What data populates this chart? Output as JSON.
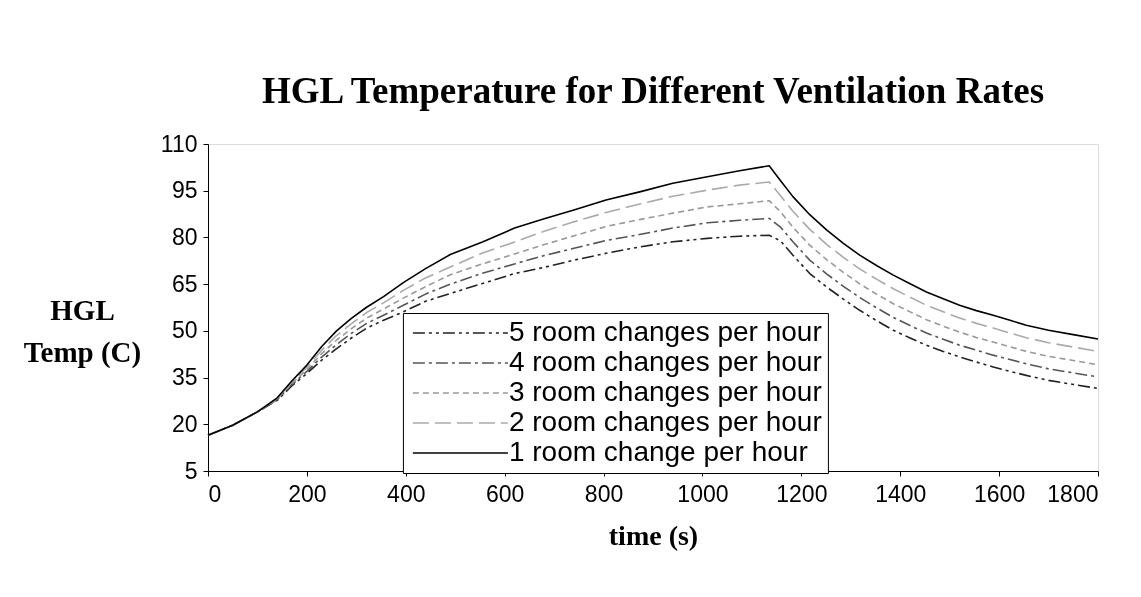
{
  "chart_data": {
    "type": "line",
    "title": "HGL Temperature for Different Ventilation Rates",
    "xlabel": "time (s)",
    "ylabel": "HGL Temp (C)",
    "x": [
      0,
      50,
      100,
      140,
      170,
      200,
      230,
      260,
      290,
      320,
      355,
      395,
      440,
      490,
      555,
      620,
      680,
      740,
      805,
      875,
      940,
      1010,
      1075,
      1135,
      1158,
      1183,
      1217,
      1251,
      1285,
      1318,
      1352,
      1386,
      1420,
      1453,
      1487,
      1520,
      1554,
      1588,
      1622,
      1655,
      1700,
      1750,
      1800
    ],
    "series": [
      {
        "name": "5 room changes per hour",
        "color": "#222222",
        "line_style": "dashdotdot",
        "values": [
          16.5,
          19.7,
          24,
          27.7,
          32.4,
          36.3,
          40.6,
          44.3,
          47.7,
          50.8,
          53.4,
          56.1,
          59.5,
          62,
          65.2,
          68.4,
          70.4,
          72.7,
          74.9,
          77,
          78.6,
          79.7,
          80.4,
          80.7,
          78.9,
          74.3,
          68.4,
          64.1,
          60.2,
          56.6,
          53.3,
          50.2,
          47.7,
          45.4,
          43.4,
          41.6,
          40,
          38.4,
          37,
          35.7,
          34.1,
          32.8,
          31.5
        ]
      },
      {
        "name": "4 room changes per hour",
        "color": "#555555",
        "line_style": "dashdot",
        "values": [
          16.5,
          19.7,
          24,
          27.9,
          32.8,
          37,
          41.6,
          45.6,
          49.2,
          52.3,
          55,
          58.2,
          61.8,
          65,
          68.5,
          71.5,
          74.2,
          76.5,
          79,
          81,
          83,
          84.7,
          85.5,
          86.1,
          83.3,
          78.6,
          72.7,
          68.3,
          64.3,
          60.7,
          57.4,
          54.3,
          51.7,
          49.3,
          47.3,
          45.4,
          43.8,
          42.2,
          40.8,
          39.4,
          37.8,
          36.5,
          35.2
        ]
      },
      {
        "name": "3 room changes per hour",
        "color": "#999999",
        "line_style": "dashed",
        "values": [
          16.5,
          19.7,
          24,
          28.1,
          33.2,
          37.6,
          42.7,
          47,
          50.7,
          54,
          57,
          60.5,
          64.2,
          68,
          71.5,
          74.7,
          77.7,
          80.5,
          83.5,
          85.8,
          87.8,
          89.8,
          90.8,
          91.8,
          88.2,
          83.3,
          77.5,
          72.9,
          68.8,
          65.1,
          61.8,
          58.7,
          56.1,
          53.6,
          51.5,
          49.6,
          47.9,
          46.4,
          44.9,
          43.4,
          41.8,
          40.5,
          39.1
        ]
      },
      {
        "name": "2 room changes per hour",
        "color": "#aaaaaa",
        "line_style": "longdash",
        "values": [
          16.5,
          19.7,
          24,
          28.3,
          33.6,
          38.3,
          43.8,
          48.5,
          52.3,
          55.8,
          59,
          63,
          67,
          70.5,
          75,
          78.5,
          82,
          85,
          88,
          90.8,
          93.2,
          95.2,
          96.8,
          97.8,
          93.4,
          88.4,
          82.6,
          77.8,
          73.6,
          69.9,
          66.6,
          63.5,
          60.8,
          58.2,
          56.1,
          54.1,
          52.4,
          50.9,
          49.3,
          47.8,
          46.2,
          44.8,
          43.4
        ]
      },
      {
        "name": "1 room change per hour",
        "color": "#000000",
        "line_style": "solid",
        "values": [
          16.5,
          19.7,
          24,
          28.5,
          34,
          39,
          45,
          50,
          54,
          57.5,
          61,
          65.5,
          70,
          74.5,
          78.5,
          83,
          86,
          88.8,
          92,
          94.7,
          97.4,
          99.5,
          101.4,
          103,
          98.2,
          93.1,
          87.3,
          82.4,
          78.1,
          74.3,
          71,
          67.9,
          65.1,
          62.5,
          60.3,
          58.2,
          56.5,
          55,
          53.4,
          51.8,
          50.2,
          48.8,
          47.4
        ]
      }
    ],
    "xlim": [
      0,
      1800
    ],
    "xticks": [
      0,
      200,
      400,
      600,
      800,
      1000,
      1200,
      1400,
      1600,
      1800
    ],
    "ylim": [
      5,
      110
    ],
    "yticks": [
      5,
      20,
      35,
      50,
      65,
      80,
      95,
      110
    ],
    "grid": false,
    "legend": "bottom",
    "marker": "none"
  }
}
